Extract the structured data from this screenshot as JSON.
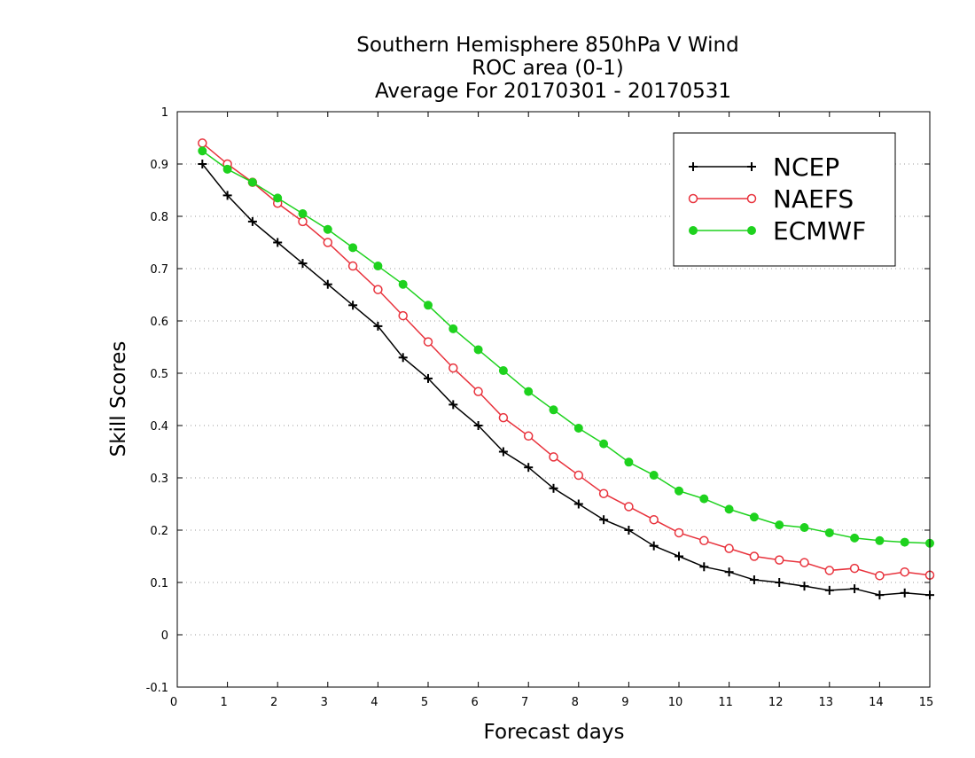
{
  "chart_data": {
    "type": "line",
    "title": [
      "Southern Hemisphere 850hPa V Wind",
      "ROC area (0-1)",
      "Average For 20170301 - 20170531"
    ],
    "xlabel": "Forecast days",
    "ylabel": "Skill Scores",
    "xlim": [
      0,
      15
    ],
    "ylim": [
      -0.1,
      1
    ],
    "xticks": [
      "0",
      "1",
      "2",
      "3",
      "4",
      "5",
      "6",
      "7",
      "8",
      "9",
      "10",
      "11",
      "12",
      "13",
      "14",
      "15"
    ],
    "yticks": [
      "-0.1",
      "0",
      "0.1",
      "0.2",
      "0.3",
      "0.4",
      "0.5",
      "0.6",
      "0.7",
      "0.8",
      "0.9",
      "1"
    ],
    "grid": "horizontal dotted",
    "legend_position": "top-right",
    "x": [
      0.5,
      1,
      1.5,
      2,
      2.5,
      3,
      3.5,
      4,
      4.5,
      5,
      5.5,
      6,
      6.5,
      7,
      7.5,
      8,
      8.5,
      9,
      9.5,
      10,
      10.5,
      11,
      11.5,
      12,
      12.5,
      13,
      13.5,
      14,
      14.5,
      15
    ],
    "series": [
      {
        "name": "NCEP",
        "color": "#000000",
        "marker": "plus",
        "values": [
          0.9,
          0.84,
          0.79,
          0.75,
          0.71,
          0.67,
          0.63,
          0.59,
          0.53,
          0.49,
          0.44,
          0.4,
          0.35,
          0.32,
          0.28,
          0.25,
          0.22,
          0.2,
          0.17,
          0.15,
          0.13,
          0.12,
          0.105,
          0.1,
          0.093,
          0.085,
          0.088,
          0.076,
          0.08,
          0.076
        ]
      },
      {
        "name": "NAEFS",
        "color": "#e8323c",
        "marker": "open-circle",
        "values": [
          0.94,
          0.9,
          0.865,
          0.825,
          0.79,
          0.75,
          0.705,
          0.66,
          0.61,
          0.56,
          0.51,
          0.465,
          0.415,
          0.38,
          0.34,
          0.305,
          0.27,
          0.245,
          0.22,
          0.195,
          0.18,
          0.165,
          0.15,
          0.143,
          0.138,
          0.123,
          0.127,
          0.113,
          0.12,
          0.114
        ]
      },
      {
        "name": "ECMWF",
        "color": "#1ed21e",
        "marker": "filled-circle",
        "values": [
          0.925,
          0.89,
          0.865,
          0.835,
          0.805,
          0.775,
          0.74,
          0.705,
          0.67,
          0.63,
          0.585,
          0.545,
          0.505,
          0.465,
          0.43,
          0.395,
          0.365,
          0.33,
          0.305,
          0.275,
          0.26,
          0.24,
          0.225,
          0.21,
          0.205,
          0.195,
          0.185,
          0.18,
          0.177,
          0.175
        ]
      }
    ]
  }
}
